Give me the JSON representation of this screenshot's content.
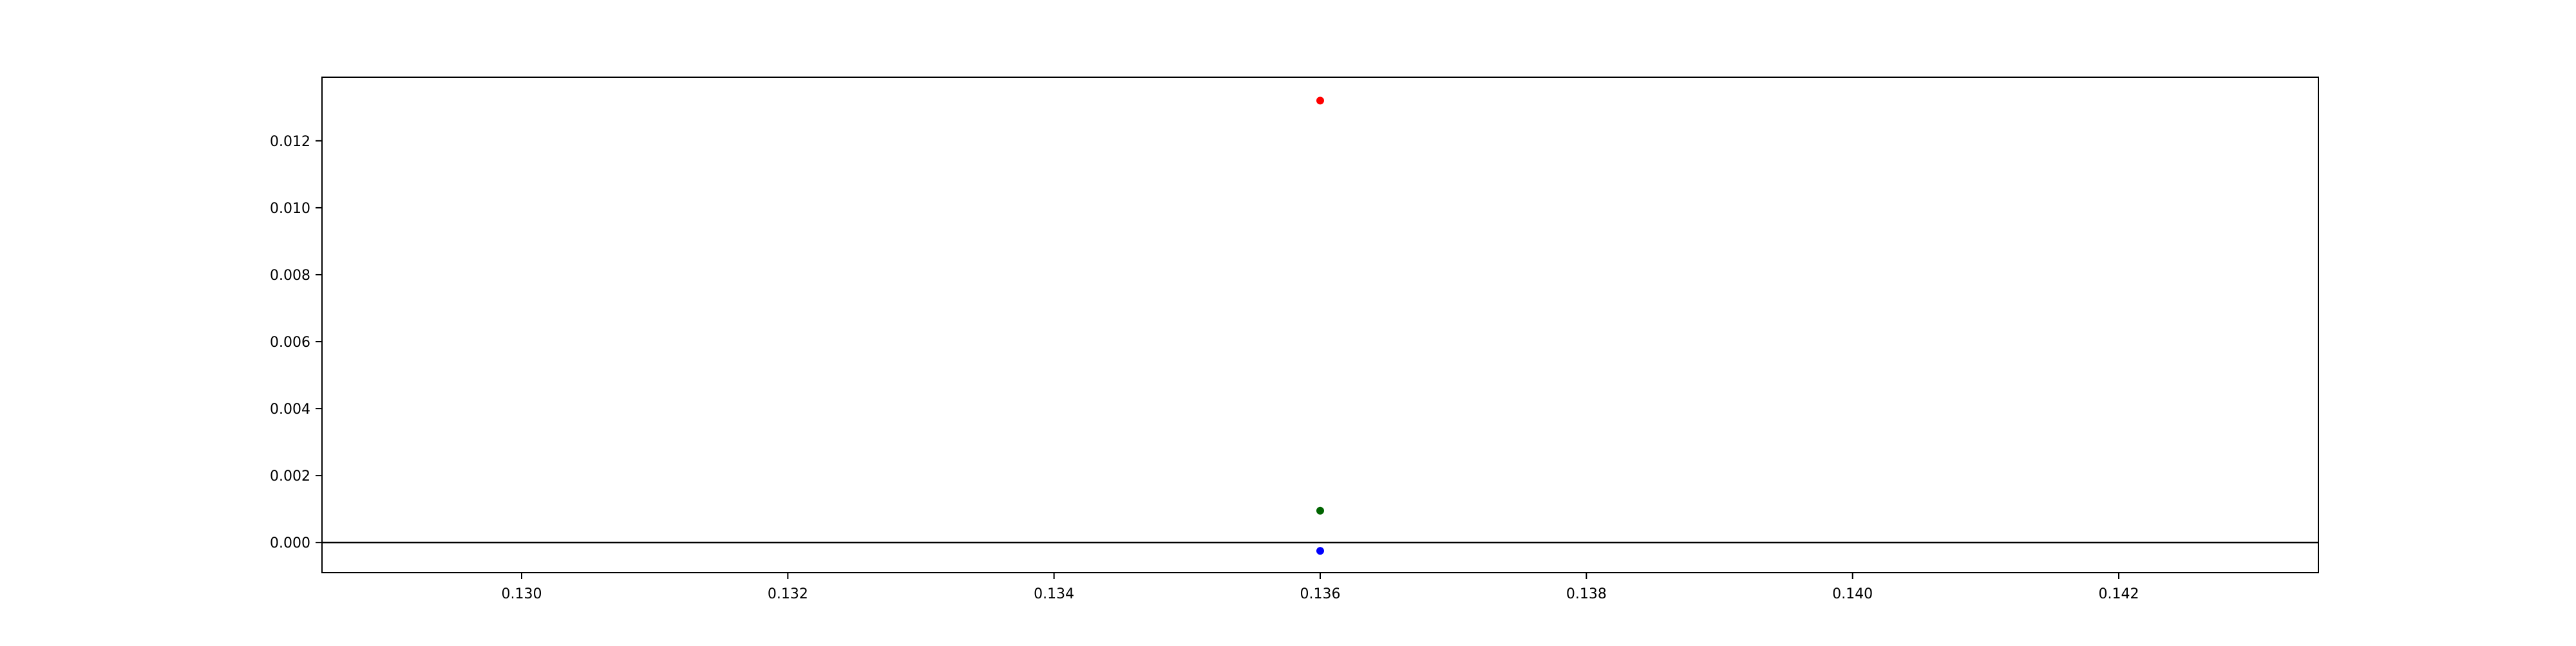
{
  "chart_data": {
    "type": "scatter",
    "title": "",
    "xlabel": "",
    "ylabel": "",
    "xlim": [
      0.1285,
      0.1435
    ],
    "ylim": [
      -0.0009,
      0.0139
    ],
    "x_ticks": [
      0.13,
      0.132,
      0.134,
      0.136,
      0.138,
      0.14,
      0.142
    ],
    "x_tick_labels": [
      "0.130",
      "0.132",
      "0.134",
      "0.136",
      "0.138",
      "0.140",
      "0.142"
    ],
    "y_ticks": [
      0.0,
      0.002,
      0.004,
      0.006,
      0.008,
      0.01,
      0.012
    ],
    "y_tick_labels": [
      "0.000",
      "0.002",
      "0.004",
      "0.006",
      "0.008",
      "0.010",
      "0.012"
    ],
    "grid": false,
    "reference_line_y": 0.0,
    "points": [
      {
        "x": 0.136,
        "y": 0.0132,
        "color": "#ff0000"
      },
      {
        "x": 0.136,
        "y": 0.00095,
        "color": "#006400"
      },
      {
        "x": 0.136,
        "y": -0.00025,
        "color": "#0000ff"
      }
    ]
  }
}
